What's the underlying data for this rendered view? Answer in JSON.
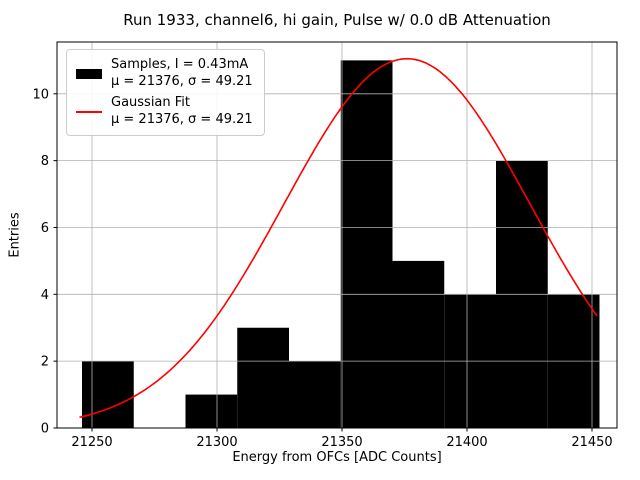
{
  "chart_data": {
    "type": "bar",
    "subtype": "histogram-with-fit",
    "title": "Run 1933, channel6, hi gain, Pulse w/ 0.0 dB Attenuation",
    "xlabel": "Energy from OFCs [ADC Counts]",
    "ylabel": "Entries",
    "xlim": [
      21236,
      21460
    ],
    "ylim": [
      0,
      11.55
    ],
    "xticks": [
      21250,
      21300,
      21350,
      21400,
      21450
    ],
    "xtick_labels": [
      "21250",
      "21300",
      "21350",
      "21400",
      "21450"
    ],
    "yticks": [
      0,
      2,
      4,
      6,
      8,
      10
    ],
    "ytick_labels": [
      "0",
      "2",
      "4",
      "6",
      "8",
      "10"
    ],
    "grid": true,
    "grid_color": "#b0b0b0",
    "bar_color": "#000000",
    "line_color": "#ff0000",
    "bins": {
      "edges": [
        21246.0,
        21266.7,
        21287.4,
        21308.1,
        21328.8,
        21349.5,
        21370.2,
        21390.9,
        21411.6,
        21432.3,
        21453.0
      ],
      "counts": [
        2,
        0,
        1,
        3,
        2,
        11,
        5,
        4,
        8,
        4
      ]
    },
    "gaussian": {
      "mu": 21376,
      "sigma": 49.21,
      "amplitude": 11.05,
      "x_start": 21245,
      "x_end": 21452
    },
    "legend": {
      "position": "upper-left",
      "entries": [
        {
          "label": "Samples, I = 0.43mA",
          "sublabel": "μ = 21376, σ = 49.21",
          "swatch": "bar",
          "color": "#000000"
        },
        {
          "label": "Gaussian Fit",
          "sublabel": "μ = 21376, σ = 49.21",
          "swatch": "line",
          "color": "#ff0000"
        }
      ]
    }
  }
}
